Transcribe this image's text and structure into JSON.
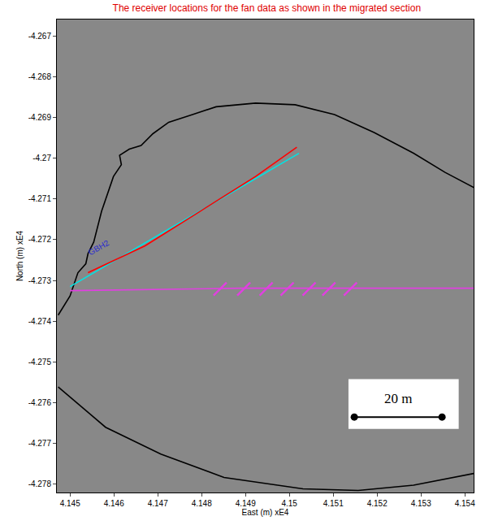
{
  "chart_data": {
    "type": "line",
    "title": "The receiver locations for the fan data as shown in the migrated section",
    "x_label": "East (m) xE4",
    "y_label": "North (m) xE4",
    "xlim": [
      4.1447,
      4.1542
    ],
    "xticks": [
      4.145,
      4.146,
      4.147,
      4.148,
      4.149,
      4.15,
      4.151,
      4.152,
      4.153,
      4.154
    ],
    "ylim": [
      -4.2782,
      -4.2666
    ],
    "yticks": [
      -4.267,
      -4.268,
      -4.269,
      -4.27,
      -4.271,
      -4.272,
      -4.273,
      -4.274,
      -4.275,
      -4.276,
      -4.277,
      -4.278
    ],
    "grid": false,
    "series": [
      {
        "type": "line",
        "color": "#000000",
        "line_style": "solid",
        "x": [
          4.14473,
          4.145,
          4.14518,
          4.14536,
          4.14541,
          4.14554,
          4.14572,
          4.14599,
          4.14617,
          4.14613,
          4.14635,
          4.14662,
          4.14689,
          4.14725,
          4.14779,
          4.14833,
          4.14923,
          4.15013,
          4.15103,
          4.15193,
          4.15283,
          4.15355,
          4.15422
        ],
        "values": [
          -4.27385,
          -4.27338,
          -4.27281,
          -4.27259,
          -4.27234,
          -4.27206,
          -4.2713,
          -4.27045,
          -4.27016,
          -4.26993,
          -4.26978,
          -4.26969,
          -4.2694,
          -4.26912,
          -4.26893,
          -4.26874,
          -4.26865,
          -4.26869,
          -4.26893,
          -4.26937,
          -4.26988,
          -4.27035,
          -4.27073
        ]
      },
      {
        "type": "line",
        "color": "#000000",
        "line_style": "solid",
        "x": [
          4.14473,
          4.14581,
          4.14707,
          4.14851,
          4.15031,
          4.15157,
          4.15283,
          4.15422
        ],
        "values": [
          -4.27561,
          -4.2766,
          -4.27726,
          -4.27783,
          -4.27811,
          -4.27815,
          -4.27802,
          -4.27773
        ]
      },
      {
        "type": "line",
        "color": "#00e5e5",
        "line_style": "solid",
        "x": [
          4.145,
          4.15022
        ],
        "values": [
          -4.27315,
          -4.26988
        ]
      },
      {
        "type": "line",
        "color": "#ff0000",
        "line_style": "solid",
        "x": [
          4.14541,
          4.14671,
          4.14797,
          4.14923,
          4.15017
        ],
        "values": [
          -4.27281,
          -4.27215,
          -4.2713,
          -4.27045,
          -4.26973
        ]
      },
      {
        "type": "line",
        "color": "#e040e0",
        "line_style": "solid",
        "x": [
          4.145,
          4.14887,
          4.15422
        ],
        "values": [
          -4.27325,
          -4.27319,
          -4.27319
        ]
      },
      {
        "type": "scatter",
        "color": "#e040e0",
        "marker": "line-ne",
        "x": [
          4.14842,
          4.14896,
          4.14947,
          4.14995,
          4.15045,
          4.1509,
          4.15139
        ],
        "values": [
          -4.27321,
          -4.27321,
          -4.27321,
          -4.27321,
          -4.27321,
          -4.27321,
          -4.27321
        ]
      }
    ],
    "annotations": [
      {
        "text": "GBH2",
        "x": 4.14566,
        "y": -4.2722,
        "color": "#2a2ad0"
      }
    ],
    "scale_bar": {
      "label": "20 m",
      "x": [
        4.15148,
        4.15348
      ],
      "y": -4.27635,
      "color": "#000000"
    }
  }
}
